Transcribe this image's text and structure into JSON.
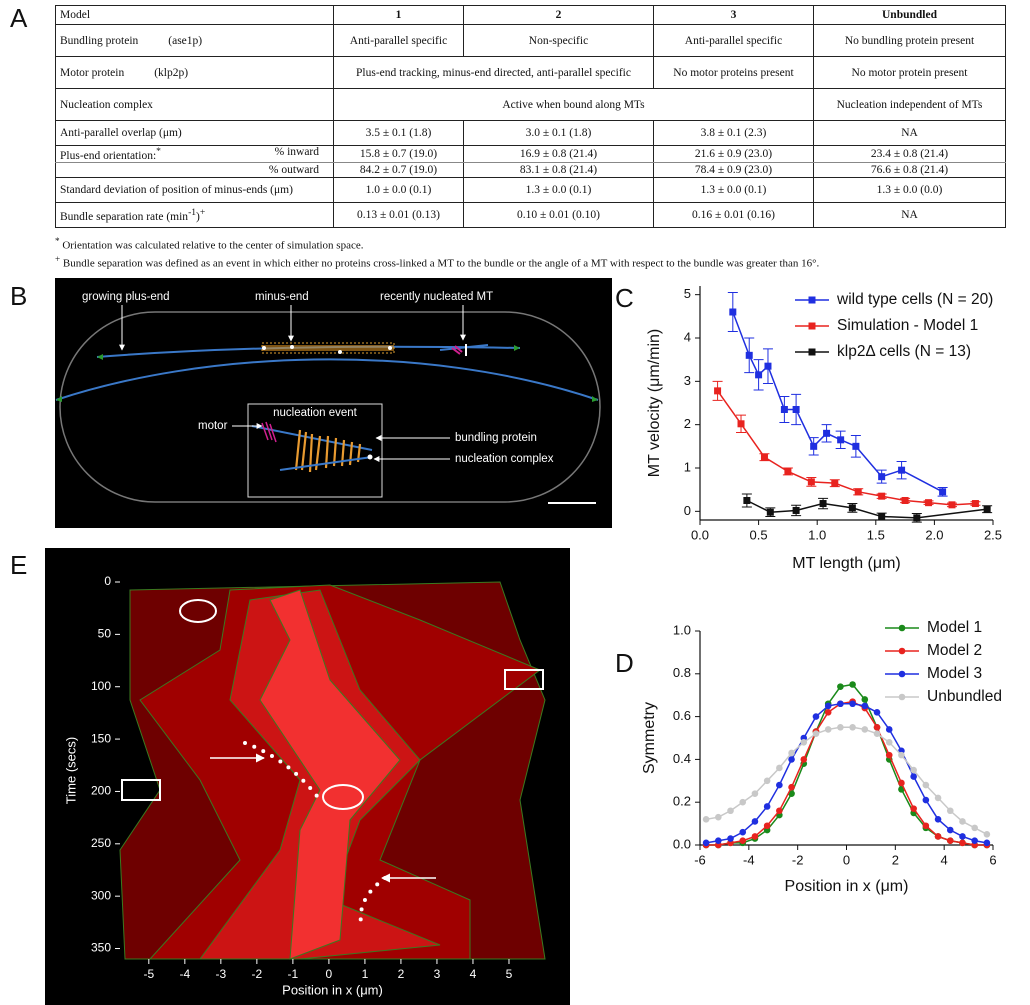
{
  "panel_labels": [
    "A",
    "B",
    "C",
    "D",
    "E"
  ],
  "table": {
    "header": [
      "Model",
      "1",
      "2",
      "3",
      "Unbundled"
    ],
    "rows": [
      [
        "Bundling protein",
        "(ase1p)",
        "Anti-parallel specific",
        "Non-specific",
        "Anti-parallel specific",
        "No bundling protein present"
      ],
      [
        "Motor protein",
        "(klp2p)",
        "Plus-end tracking, minus-end directed, anti-parallel specific",
        "No motor proteins present",
        "No motor protein present"
      ],
      [
        "Nucleation complex",
        "Active when bound along MTs",
        "Nucleation independent of MTs"
      ],
      [
        "Anti-parallel overlap (μm)",
        "3.5 ± 0.1 (1.8)",
        "3.0 ± 0.1 (1.8)",
        "3.8 ± 0.1 (2.3)",
        "NA"
      ],
      [
        "Plus-end orientation:",
        "*",
        "% inward",
        "15.8 ± 0.7 (19.0)",
        "16.9 ± 0.8 (21.4)",
        "21.6 ± 0.9 (23.0)",
        "23.4 ± 0.8 (21.4)"
      ],
      [
        "% outward",
        "84.2 ± 0.7 (19.0)",
        "83.1 ± 0.8 (21.4)",
        "78.4 ± 0.9 (23.0)",
        "76.6 ± 0.8 (21.4)"
      ],
      [
        "Standard deviation of position of minus-ends (μm)",
        "1.0 ± 0.0 (0.1)",
        "1.3 ± 0.0 (0.1)",
        "1.3 ± 0.0 (0.1)",
        "1.3 ± 0.0 (0.0)"
      ],
      [
        "Bundle separation rate (min",
        "-1",
        ")",
        "+",
        "0.13 ± 0.01 (0.13)",
        "0.10 ± 0.01 (0.10)",
        "0.16 ± 0.01 (0.16)",
        "NA"
      ]
    ]
  },
  "footnotes": [
    {
      "mark": "*",
      "text": "Orientation was calculated relative to the center of simulation space."
    },
    {
      "mark": "+",
      "text": "Bundle separation was defined as an event in which either no proteins cross-linked a MT to the bundle or the angle of a MT with respect to the bundle was greater than 16°."
    }
  ],
  "diagram": {
    "labels": [
      "growing plus-end",
      "minus-end",
      "recently nucleated MT",
      "nucleation event",
      "motor",
      "bundling protein",
      "nucleation complex"
    ]
  },
  "chart_data": [
    {
      "type": "line",
      "xlabel": "MT length (μm)",
      "ylabel": "MT velocity (μm/min)",
      "xlim": [
        0,
        2.5
      ],
      "ylim": [
        -0.2,
        5.2
      ],
      "xticks": [
        {
          "value": 0,
          "label": "0.0"
        },
        {
          "value": 0.5,
          "label": "0.5"
        },
        {
          "value": 1,
          "label": "1.0"
        },
        {
          "value": 1.5,
          "label": "1.5"
        },
        {
          "value": 2,
          "label": "2.0"
        },
        {
          "value": 2.5,
          "label": "2.5"
        }
      ],
      "yticks": [
        0,
        1,
        2,
        3,
        4,
        5
      ],
      "marker": "square",
      "legend": "upper right",
      "series": [
        {
          "name": "wild type cells (N = 20)",
          "color": "#1f2fe0",
          "x": [
            0.28,
            0.42,
            0.5,
            0.58,
            0.72,
            0.82,
            0.97,
            1.08,
            1.2,
            1.33,
            1.55,
            1.72,
            2.07
          ],
          "values": [
            4.6,
            3.6,
            3.15,
            3.35,
            2.35,
            2.35,
            1.5,
            1.8,
            1.65,
            1.5,
            0.8,
            0.95,
            0.45
          ],
          "errors": [
            0.45,
            0.4,
            0.35,
            0.4,
            0.3,
            0.35,
            0.2,
            0.2,
            0.2,
            0.25,
            0.15,
            0.2,
            0.1
          ]
        },
        {
          "name": "Simulation - Model 1",
          "color": "#e8231f",
          "x": [
            0.15,
            0.35,
            0.55,
            0.75,
            0.95,
            1.15,
            1.35,
            1.55,
            1.75,
            1.95,
            2.15,
            2.35
          ],
          "values": [
            2.78,
            2.02,
            1.25,
            0.92,
            0.68,
            0.65,
            0.45,
            0.35,
            0.25,
            0.2,
            0.15,
            0.18
          ],
          "errors": [
            0.22,
            0.2,
            0.08,
            0.08,
            0.1,
            0.08,
            0.07,
            0.05,
            0.05,
            0.04,
            0.04,
            0.04
          ]
        },
        {
          "name": "klp2Δ cells (N = 13)",
          "color": "#111111",
          "x": [
            0.4,
            0.6,
            0.82,
            1.05,
            1.3,
            1.55,
            1.85,
            2.45
          ],
          "values": [
            0.25,
            -0.02,
            0.02,
            0.18,
            0.08,
            -0.12,
            -0.15,
            0.05
          ],
          "errors": [
            0.15,
            0.1,
            0.12,
            0.12,
            0.1,
            0.08,
            0.1,
            0.08
          ]
        }
      ]
    },
    {
      "type": "line",
      "xlabel": "Position in x (μm)",
      "ylabel": "Symmetry",
      "xlim": [
        -6,
        6
      ],
      "ylim": [
        0,
        1
      ],
      "xticks": [
        -6,
        -4,
        -2,
        0,
        2,
        4,
        6
      ],
      "yticks": [
        {
          "value": 0,
          "label": "0.0"
        },
        {
          "value": 0.2,
          "label": "0.2"
        },
        {
          "value": 0.4,
          "label": "0.4"
        },
        {
          "value": 0.6,
          "label": "0.6"
        },
        {
          "value": 0.8,
          "label": "0.8"
        },
        {
          "value": 1,
          "label": "1.0"
        }
      ],
      "marker": "circle",
      "legend": "upper right",
      "x": [
        -5.75,
        -5.25,
        -4.75,
        -4.25,
        -3.75,
        -3.25,
        -2.75,
        -2.25,
        -1.75,
        -1.25,
        -0.75,
        -0.25,
        0.25,
        0.75,
        1.25,
        1.75,
        2.25,
        2.75,
        3.25,
        3.75,
        4.25,
        4.75,
        5.25,
        5.75
      ],
      "series": [
        {
          "name": "Model 1",
          "color": "#1a8a1a",
          "values": [
            0,
            0,
            0.01,
            0.01,
            0.03,
            0.07,
            0.14,
            0.24,
            0.38,
            0.53,
            0.66,
            0.74,
            0.75,
            0.68,
            0.55,
            0.4,
            0.26,
            0.15,
            0.08,
            0.04,
            0.02,
            0.01,
            0,
            0
          ]
        },
        {
          "name": "Model 2",
          "color": "#e8231f",
          "values": [
            0,
            0,
            0.01,
            0.02,
            0.04,
            0.09,
            0.16,
            0.27,
            0.4,
            0.53,
            0.62,
            0.66,
            0.67,
            0.64,
            0.55,
            0.42,
            0.29,
            0.17,
            0.09,
            0.04,
            0.02,
            0.01,
            0,
            0
          ]
        },
        {
          "name": "Model 3",
          "color": "#1f2fe0",
          "values": [
            0.01,
            0.02,
            0.03,
            0.06,
            0.11,
            0.18,
            0.28,
            0.4,
            0.5,
            0.6,
            0.65,
            0.66,
            0.66,
            0.65,
            0.62,
            0.54,
            0.44,
            0.32,
            0.21,
            0.12,
            0.07,
            0.04,
            0.02,
            0.01
          ]
        },
        {
          "name": "Unbundled",
          "color": "#c8c8c8",
          "values": [
            0.12,
            0.13,
            0.16,
            0.2,
            0.24,
            0.3,
            0.36,
            0.43,
            0.48,
            0.52,
            0.54,
            0.55,
            0.55,
            0.54,
            0.52,
            0.48,
            0.42,
            0.35,
            0.28,
            0.22,
            0.16,
            0.11,
            0.08,
            0.05
          ]
        }
      ]
    },
    {
      "type": "image",
      "xlabel": "Position in x (μm)",
      "ylabel": "Time (secs)",
      "xlim": [
        -5.8,
        6
      ],
      "ylim": [
        0,
        360
      ],
      "yinvert": true,
      "xticks": [
        -5,
        -4,
        -3,
        -2,
        -1,
        0,
        1,
        2,
        3,
        4,
        5
      ],
      "yticks": [
        0,
        50,
        100,
        150,
        200,
        250,
        300,
        350
      ]
    }
  ]
}
